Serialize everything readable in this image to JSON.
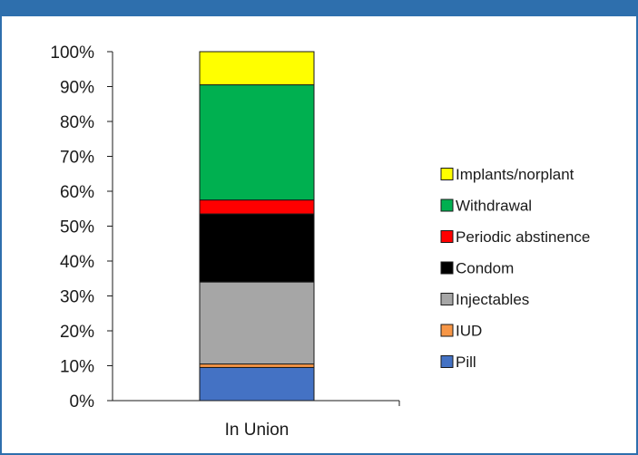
{
  "chart_data": {
    "type": "bar",
    "stacked": true,
    "categories": [
      "In Union"
    ],
    "series": [
      {
        "name": "Pill",
        "values": [
          9.5
        ],
        "color": "#4472c4"
      },
      {
        "name": "IUD",
        "values": [
          1.0
        ],
        "color": "#f79646"
      },
      {
        "name": "Injectables",
        "values": [
          23.5
        ],
        "color": "#a6a6a6"
      },
      {
        "name": "Condom",
        "values": [
          19.5
        ],
        "color": "#000000"
      },
      {
        "name": "Periodic abstinence",
        "values": [
          4.0
        ],
        "color": "#ff0000"
      },
      {
        "name": "Withdrawal",
        "values": [
          33.0
        ],
        "color": "#00b050"
      },
      {
        "name": "Implants/norplant",
        "values": [
          9.5
        ],
        "color": "#ffff00"
      }
    ],
    "y_ticks": [
      "0%",
      "10%",
      "20%",
      "30%",
      "40%",
      "50%",
      "60%",
      "70%",
      "80%",
      "90%",
      "100%"
    ],
    "ylim": [
      0,
      100
    ],
    "legend_position": "right",
    "grid": false,
    "header_color": "#2e6fad"
  }
}
